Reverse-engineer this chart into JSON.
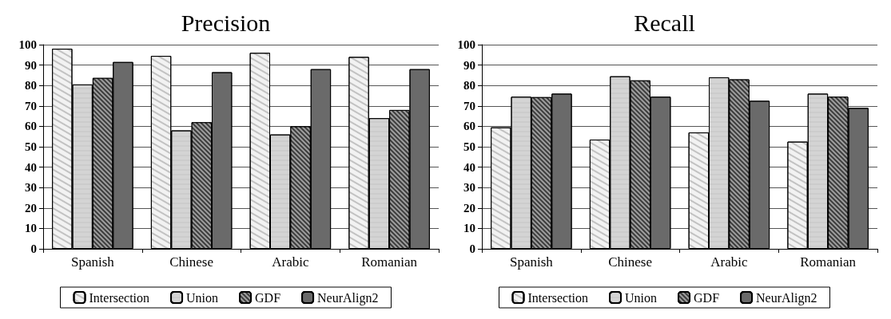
{
  "chart_data": [
    {
      "type": "bar",
      "title": "Precision",
      "categories": [
        "Spanish",
        "Chinese",
        "Arabic",
        "Romanian"
      ],
      "series": [
        {
          "name": "Intersection",
          "color": "#f2f2f2",
          "values": [
            98,
            94.5,
            96,
            94
          ]
        },
        {
          "name": "Union",
          "color": "#d4d4d4",
          "values": [
            80.5,
            58,
            56,
            64
          ]
        },
        {
          "name": "GDF",
          "color": "#3c3c3c",
          "values": [
            83.7,
            62,
            60,
            68
          ]
        },
        {
          "name": "NeurAlign2",
          "color": "#6a6a6a",
          "values": [
            91.5,
            86.5,
            88,
            88
          ]
        }
      ],
      "ylim": [
        0,
        100
      ],
      "yticks": [
        0,
        10,
        20,
        30,
        40,
        50,
        60,
        70,
        80,
        90,
        100
      ],
      "grid": "y",
      "legend": "bottom"
    },
    {
      "type": "bar",
      "title": "Recall",
      "categories": [
        "Spanish",
        "Chinese",
        "Arabic",
        "Romanian"
      ],
      "series": [
        {
          "name": "Intersection",
          "color": "#f2f2f2",
          "values": [
            59.5,
            53.5,
            57,
            52.5
          ]
        },
        {
          "name": "Union",
          "color": "#d4d4d4",
          "values": [
            74.5,
            84.5,
            84,
            76
          ]
        },
        {
          "name": "GDF",
          "color": "#3c3c3c",
          "values": [
            74.3,
            82.5,
            83,
            74.5
          ]
        },
        {
          "name": "NeurAlign2",
          "color": "#6a6a6a",
          "values": [
            76,
            74.5,
            72.5,
            69
          ]
        }
      ],
      "ylim": [
        0,
        100
      ],
      "yticks": [
        0,
        10,
        20,
        30,
        40,
        50,
        60,
        70,
        80,
        90,
        100
      ],
      "grid": "y",
      "legend": "bottom"
    }
  ]
}
